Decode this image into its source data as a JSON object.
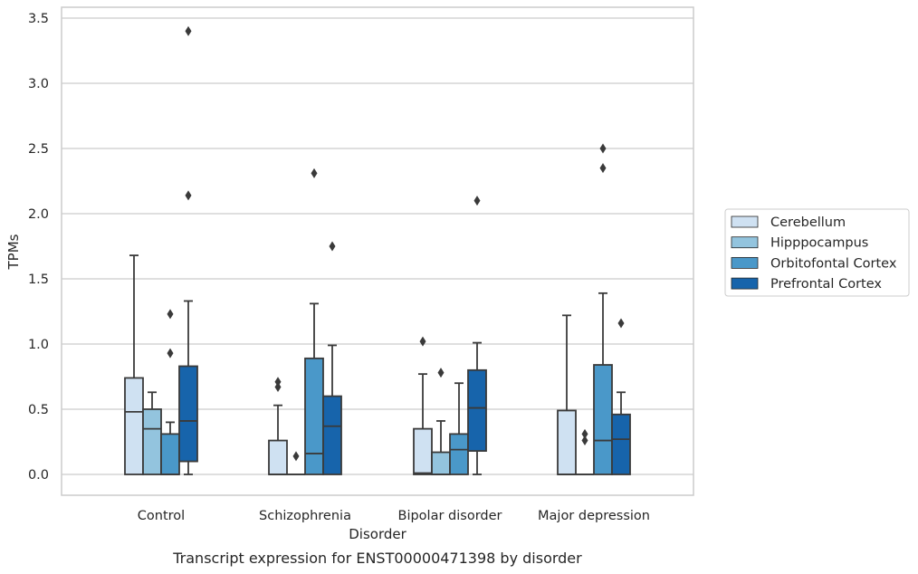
{
  "chart_data": {
    "type": "box",
    "caption": "Transcript expression for ENST00000471398 by disorder",
    "xlabel": "Disorder",
    "ylabel": "TPMs",
    "ylim": [
      -0.17,
      3.58
    ],
    "yticks": [
      "0.0",
      "0.5",
      "1.0",
      "1.5",
      "2.0",
      "2.5",
      "3.0",
      "3.5"
    ],
    "grid": "horizontal",
    "legend_position": "right",
    "categories": [
      "Control",
      "Schizophrenia",
      "Bipolar disorder",
      "Major depression"
    ],
    "series": [
      {
        "name": "Cerebellum",
        "color": "#cfe1f2",
        "boxes": [
          {
            "whislo": 0.0,
            "q1": 0.0,
            "med": 0.48,
            "q3": 0.74,
            "whishi": 1.68,
            "fliers": []
          },
          {
            "whislo": 0.0,
            "q1": 0.0,
            "med": 0.0,
            "q3": 0.26,
            "whishi": 0.53,
            "fliers": [
              0.67,
              0.71
            ]
          },
          {
            "whislo": 0.0,
            "q1": 0.0,
            "med": 0.01,
            "q3": 0.35,
            "whishi": 0.77,
            "fliers": [
              1.02
            ]
          },
          {
            "whislo": 0.0,
            "q1": 0.0,
            "med": 0.0,
            "q3": 0.49,
            "whishi": 1.22,
            "fliers": []
          }
        ]
      },
      {
        "name": "Hipppocampus",
        "color": "#93c4de",
        "boxes": [
          {
            "whislo": 0.0,
            "q1": 0.0,
            "med": 0.35,
            "q3": 0.5,
            "whishi": 0.63,
            "fliers": []
          },
          {
            "whislo": 0.0,
            "q1": 0.0,
            "med": 0.0,
            "q3": 0.0,
            "whishi": 0.0,
            "fliers": [
              0.14
            ]
          },
          {
            "whislo": 0.0,
            "q1": 0.0,
            "med": 0.0,
            "q3": 0.17,
            "whishi": 0.41,
            "fliers": [
              0.78
            ]
          },
          {
            "whislo": 0.0,
            "q1": 0.0,
            "med": 0.0,
            "q3": 0.0,
            "whishi": 0.0,
            "fliers": [
              0.26,
              0.31
            ]
          }
        ]
      },
      {
        "name": "Orbitofontal Cortex",
        "color": "#4a98c9",
        "boxes": [
          {
            "whislo": 0.0,
            "q1": 0.0,
            "med": 0.0,
            "q3": 0.31,
            "whishi": 0.4,
            "fliers": [
              0.93,
              1.23
            ]
          },
          {
            "whislo": 0.0,
            "q1": 0.0,
            "med": 0.16,
            "q3": 0.89,
            "whishi": 1.31,
            "fliers": [
              2.31
            ]
          },
          {
            "whislo": 0.0,
            "q1": 0.0,
            "med": 0.19,
            "q3": 0.31,
            "whishi": 0.7,
            "fliers": []
          },
          {
            "whislo": 0.0,
            "q1": 0.0,
            "med": 0.26,
            "q3": 0.84,
            "whishi": 1.39,
            "fliers": [
              2.35,
              2.5
            ]
          }
        ]
      },
      {
        "name": "Prefrontal Cortex",
        "color": "#1764ab",
        "boxes": [
          {
            "whislo": 0.0,
            "q1": 0.1,
            "med": 0.41,
            "q3": 0.83,
            "whishi": 1.33,
            "fliers": [
              2.14,
              3.4
            ]
          },
          {
            "whislo": 0.0,
            "q1": 0.0,
            "med": 0.37,
            "q3": 0.6,
            "whishi": 0.99,
            "fliers": [
              1.75
            ]
          },
          {
            "whislo": 0.0,
            "q1": 0.18,
            "med": 0.51,
            "q3": 0.8,
            "whishi": 1.01,
            "fliers": [
              2.1
            ]
          },
          {
            "whislo": 0.0,
            "q1": 0.0,
            "med": 0.27,
            "q3": 0.46,
            "whishi": 0.63,
            "fliers": [
              1.16
            ]
          }
        ]
      }
    ]
  }
}
